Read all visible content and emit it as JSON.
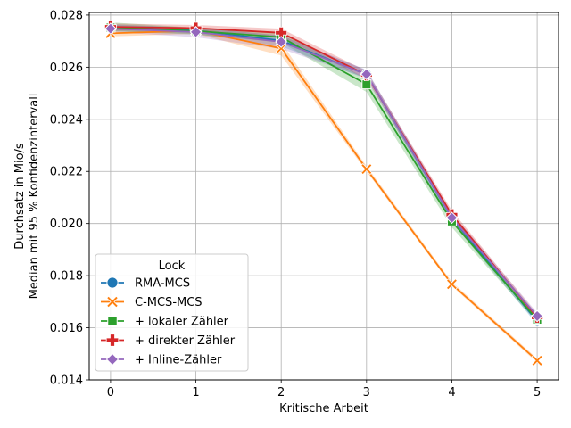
{
  "chart_data": {
    "type": "line",
    "xlabel": "Kritische Arbeit",
    "ylabel": [
      "Durchsatz in Mio/s",
      "Median mit 95 % Konfidenzintervall"
    ],
    "x": [
      0,
      1,
      2,
      3,
      4,
      5
    ],
    "xlim": [
      -0.25,
      5.25
    ],
    "ylim": [
      0.014,
      0.0281
    ],
    "yticks": [
      0.014,
      0.016,
      0.018,
      0.02,
      0.022,
      0.024,
      0.026,
      0.028
    ],
    "ytick_labels": [
      "0.014",
      "0.016",
      "0.018",
      "0.020",
      "0.022",
      "0.024",
      "0.026",
      "0.028"
    ],
    "xtick_labels": [
      "0",
      "1",
      "2",
      "3",
      "4",
      "5"
    ],
    "grid": true,
    "legend": {
      "title": "Lock",
      "placement": "lower-left"
    },
    "series": [
      {
        "name": "RMA-MCS",
        "color": "#1f77b4",
        "marker": "circle",
        "values": [
          0.02752,
          0.02741,
          0.02702,
          0.02572,
          0.02021,
          0.01625
        ],
        "ci_low": [
          0.0274,
          0.02728,
          0.0268,
          0.02555,
          0.02005,
          0.01612
        ],
        "ci_high": [
          0.02765,
          0.02752,
          0.02722,
          0.02588,
          0.02038,
          0.01638
        ]
      },
      {
        "name": "C-MCS-MCS",
        "color": "#ff7f0e",
        "marker": "x",
        "values": [
          0.0273,
          0.0274,
          0.02672,
          0.02209,
          0.01767,
          0.01474
        ],
        "ci_low": [
          0.02718,
          0.02728,
          0.02645,
          0.022,
          0.0176,
          0.01466
        ],
        "ci_high": [
          0.02742,
          0.02752,
          0.02695,
          0.0222,
          0.01776,
          0.01482
        ]
      },
      {
        "name": "+ lokaler Zähler",
        "color": "#2ca02c",
        "marker": "square",
        "values": [
          0.02752,
          0.02739,
          0.02715,
          0.02534,
          0.02008,
          0.01631
        ],
        "ci_low": [
          0.02738,
          0.02725,
          0.02695,
          0.02505,
          0.01985,
          0.0162
        ],
        "ci_high": [
          0.02772,
          0.02752,
          0.02735,
          0.02555,
          0.0203,
          0.01643
        ]
      },
      {
        "name": "+ direkter Zähler",
        "color": "#d62728",
        "marker": "plus",
        "values": [
          0.02755,
          0.0275,
          0.02732,
          0.0257,
          0.02034,
          0.0164
        ],
        "ci_low": [
          0.02742,
          0.02738,
          0.02715,
          0.02555,
          0.02018,
          0.01628
        ],
        "ci_high": [
          0.02768,
          0.02762,
          0.02748,
          0.02585,
          0.0205,
          0.01652
        ]
      },
      {
        "name": "+ Inline-Zähler",
        "color": "#9467bd",
        "marker": "diamond",
        "values": [
          0.02748,
          0.02735,
          0.02697,
          0.02573,
          0.02022,
          0.01645
        ],
        "ci_low": [
          0.02735,
          0.02715,
          0.0267,
          0.02558,
          0.02005,
          0.01632
        ],
        "ci_high": [
          0.02762,
          0.02752,
          0.02722,
          0.0259,
          0.0204,
          0.01658
        ]
      }
    ]
  }
}
